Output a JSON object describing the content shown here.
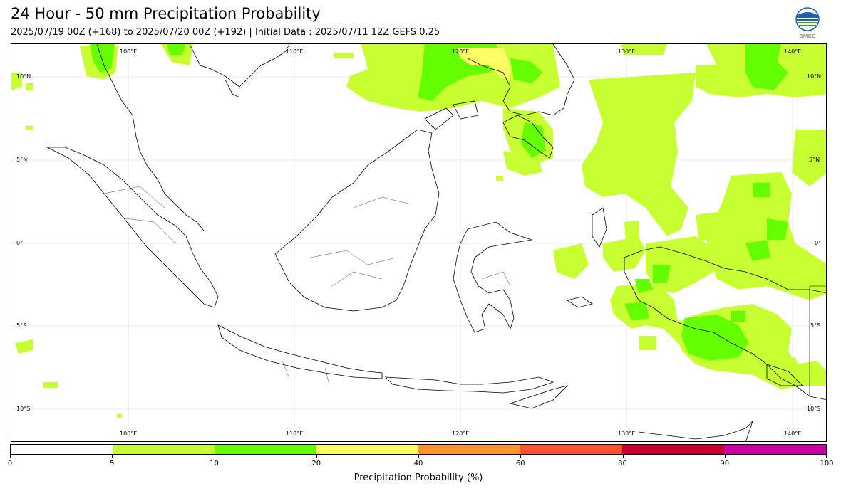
{
  "header": {
    "title": "24 Hour - 50 mm Precipitation Probability",
    "subtitle": "2025/07/19 00Z (+168) to 2025/07/20 00Z (+192) | Initial Data : 2025/07/11 12Z GEFS 0.25"
  },
  "logo": {
    "text": "BMKG",
    "colors": {
      "blue": "#1f5fb0",
      "green": "#3d9a3a",
      "grey": "#9a9a9a"
    }
  },
  "map": {
    "lon_range": [
      95,
      144
    ],
    "lat_range": [
      -12,
      12
    ],
    "lon_ticks": [
      "100°E",
      "110°E",
      "120°E",
      "130°E",
      "140°E"
    ],
    "lon_tick_values": [
      100,
      110,
      120,
      130,
      140
    ],
    "lat_ticks": [
      "10°N",
      "5°N",
      "0°",
      "5°S",
      "10°S"
    ],
    "lat_tick_values": [
      10,
      5,
      0,
      -5,
      -10
    ]
  },
  "colorbar": {
    "title": "Precipitation Probability (%)",
    "boundaries": [
      "0",
      "5",
      "10",
      "20",
      "40",
      "60",
      "80",
      "90",
      "100"
    ],
    "colors": [
      "#ffffff",
      "#c8ff32",
      "#64ff00",
      "#ffff64",
      "#ff9632",
      "#ff5032",
      "#c80032",
      "#c800a0"
    ]
  }
}
